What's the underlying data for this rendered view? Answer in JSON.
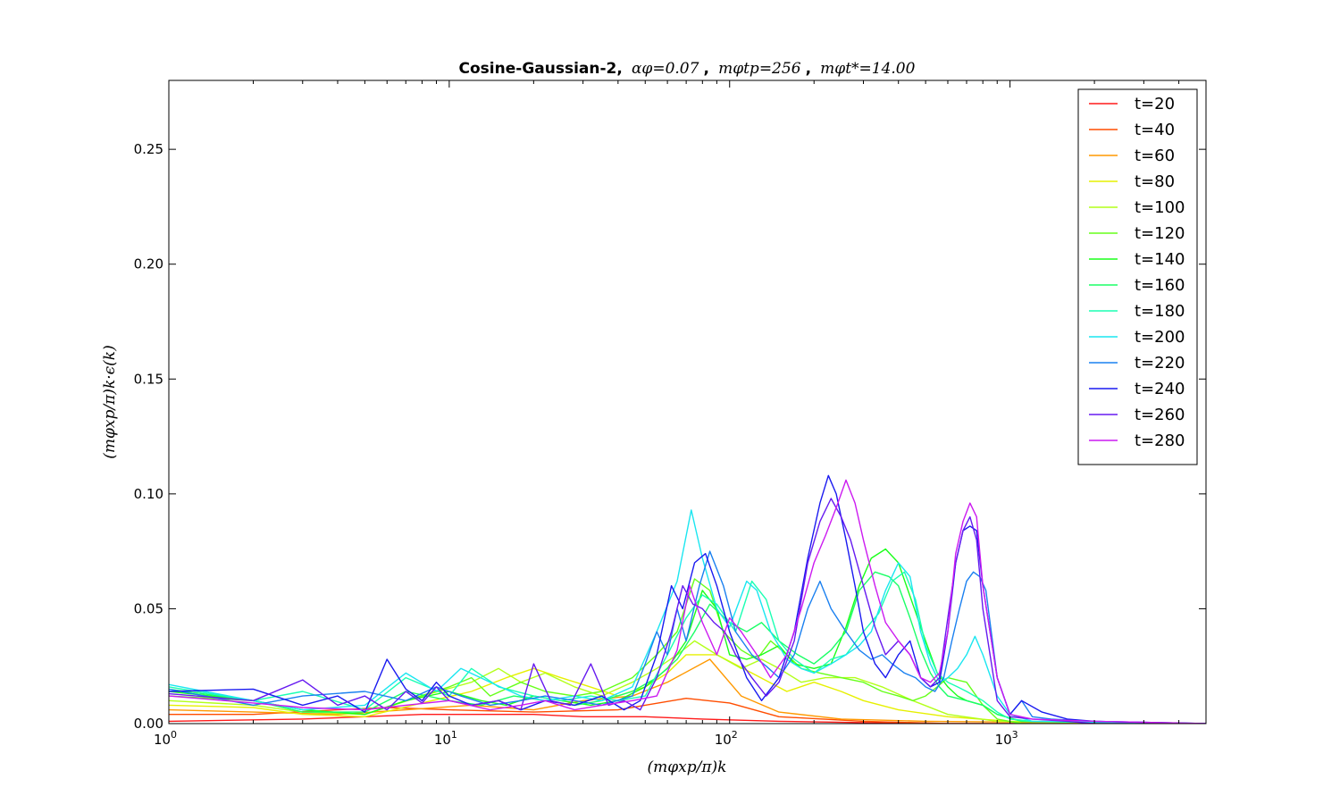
{
  "chart_data": {
    "type": "line",
    "title": {
      "main": "Cosine-Gaussian-2,",
      "part1": "αφ=0.07",
      "sep1": ",",
      "part2": "mφtp=256",
      "sep2": ",",
      "part3": "mφt*=14.00"
    },
    "xlabel": "(mφxp/π)k",
    "ylabel": "(mφxp/π)k·ϵ(k)",
    "x_scale": "log",
    "xlim": [
      1,
      5000
    ],
    "ylim": [
      0,
      0.28
    ],
    "x_ticks": [
      {
        "value": 1,
        "base": "10",
        "exp": "0"
      },
      {
        "value": 10,
        "base": "10",
        "exp": "1"
      },
      {
        "value": 100,
        "base": "10",
        "exp": "2"
      },
      {
        "value": 1000,
        "base": "10",
        "exp": "3"
      }
    ],
    "y_ticks": [
      {
        "value": 0.0,
        "label": "0.00"
      },
      {
        "value": 0.05,
        "label": "0.05"
      },
      {
        "value": 0.1,
        "label": "0.10"
      },
      {
        "value": 0.15,
        "label": "0.15"
      },
      {
        "value": 0.2,
        "label": "0.20"
      },
      {
        "value": 0.25,
        "label": "0.25"
      }
    ],
    "legend_position": "top-right",
    "grid": false,
    "series": [
      {
        "name": "t=20",
        "color": "#ff1a1a",
        "x": [
          1,
          3,
          5,
          8,
          12,
          20,
          30,
          50,
          80,
          150,
          500,
          5000
        ],
        "y": [
          0.001,
          0.002,
          0.003,
          0.004,
          0.004,
          0.004,
          0.003,
          0.003,
          0.002,
          0.001,
          0.0,
          0.0
        ]
      },
      {
        "name": "t=40",
        "color": "#ff4d00",
        "x": [
          1,
          2,
          4,
          6,
          10,
          20,
          40,
          70,
          100,
          150,
          300,
          600,
          5000
        ],
        "y": [
          0.004,
          0.004,
          0.006,
          0.007,
          0.006,
          0.005,
          0.006,
          0.011,
          0.009,
          0.003,
          0.001,
          0.0,
          0.0
        ]
      },
      {
        "name": "t=60",
        "color": "#ff9900",
        "x": [
          1,
          2,
          4,
          7,
          12,
          20,
          30,
          45,
          60,
          85,
          110,
          150,
          250,
          500,
          5000
        ],
        "y": [
          0.006,
          0.005,
          0.004,
          0.006,
          0.008,
          0.006,
          0.01,
          0.012,
          0.018,
          0.028,
          0.012,
          0.005,
          0.002,
          0.001,
          0.0
        ]
      },
      {
        "name": "t=80",
        "color": "#e6f000",
        "x": [
          1,
          2,
          3,
          5,
          8,
          12,
          16,
          20,
          25,
          30,
          40,
          50,
          60,
          70,
          90,
          120,
          160,
          200,
          250,
          300,
          400,
          600,
          1000,
          5000
        ],
        "y": [
          0.008,
          0.007,
          0.004,
          0.003,
          0.009,
          0.014,
          0.02,
          0.024,
          0.02,
          0.017,
          0.012,
          0.016,
          0.022,
          0.03,
          0.03,
          0.022,
          0.014,
          0.018,
          0.014,
          0.01,
          0.006,
          0.003,
          0.001,
          0.0
        ]
      },
      {
        "name": "t=100",
        "color": "#b3ff1a",
        "x": [
          1,
          2,
          3,
          5,
          8,
          12,
          15,
          18,
          22,
          28,
          35,
          45,
          55,
          65,
          75,
          90,
          110,
          130,
          150,
          180,
          220,
          280,
          350,
          450,
          600,
          900,
          5000
        ],
        "y": [
          0.01,
          0.008,
          0.005,
          0.004,
          0.012,
          0.018,
          0.024,
          0.018,
          0.022,
          0.016,
          0.012,
          0.018,
          0.024,
          0.03,
          0.036,
          0.03,
          0.024,
          0.028,
          0.024,
          0.018,
          0.02,
          0.02,
          0.016,
          0.01,
          0.004,
          0.001,
          0.0
        ]
      },
      {
        "name": "t=120",
        "color": "#66ff1a",
        "x": [
          1,
          2,
          3,
          5,
          7,
          10,
          12,
          14,
          18,
          22,
          28,
          35,
          45,
          55,
          65,
          75,
          85,
          95,
          110,
          125,
          140,
          160,
          180,
          210,
          250,
          300,
          350,
          400,
          450,
          500,
          550,
          600,
          700,
          800,
          900,
          1100,
          5000
        ],
        "y": [
          0.012,
          0.01,
          0.006,
          0.004,
          0.01,
          0.016,
          0.02,
          0.012,
          0.018,
          0.014,
          0.012,
          0.014,
          0.02,
          0.03,
          0.04,
          0.063,
          0.058,
          0.04,
          0.032,
          0.028,
          0.036,
          0.03,
          0.024,
          0.022,
          0.02,
          0.018,
          0.014,
          0.012,
          0.01,
          0.012,
          0.016,
          0.02,
          0.018,
          0.008,
          0.002,
          0.0,
          0.0
        ]
      },
      {
        "name": "t=140",
        "color": "#1aff1a",
        "x": [
          1,
          2,
          3,
          5,
          7,
          10,
          13,
          16,
          20,
          25,
          32,
          40,
          50,
          60,
          70,
          80,
          90,
          100,
          115,
          130,
          150,
          170,
          200,
          230,
          260,
          290,
          320,
          360,
          400,
          450,
          500,
          550,
          600,
          650,
          700,
          800,
          900,
          1100,
          5000
        ],
        "y": [
          0.014,
          0.01,
          0.006,
          0.004,
          0.01,
          0.014,
          0.01,
          0.008,
          0.012,
          0.01,
          0.008,
          0.01,
          0.016,
          0.024,
          0.036,
          0.058,
          0.05,
          0.03,
          0.028,
          0.03,
          0.034,
          0.026,
          0.024,
          0.026,
          0.042,
          0.06,
          0.072,
          0.076,
          0.07,
          0.052,
          0.036,
          0.022,
          0.016,
          0.012,
          0.01,
          0.008,
          0.004,
          0.001,
          0.0
        ]
      },
      {
        "name": "t=160",
        "color": "#1aff66",
        "x": [
          1,
          2,
          3,
          5,
          7,
          10,
          13,
          17,
          22,
          28,
          35,
          45,
          55,
          65,
          75,
          85,
          100,
          115,
          130,
          150,
          175,
          200,
          230,
          260,
          290,
          330,
          370,
          400,
          440,
          480,
          520,
          560,
          600,
          700,
          800,
          900,
          1100,
          5000
        ],
        "y": [
          0.015,
          0.01,
          0.005,
          0.005,
          0.014,
          0.01,
          0.008,
          0.012,
          0.01,
          0.008,
          0.01,
          0.014,
          0.02,
          0.028,
          0.04,
          0.052,
          0.044,
          0.04,
          0.044,
          0.036,
          0.03,
          0.026,
          0.032,
          0.04,
          0.058,
          0.066,
          0.064,
          0.06,
          0.046,
          0.032,
          0.022,
          0.016,
          0.012,
          0.01,
          0.008,
          0.004,
          0.001,
          0.0
        ]
      },
      {
        "name": "t=180",
        "color": "#1affb3",
        "x": [
          1,
          2,
          3,
          5,
          7,
          10,
          12,
          15,
          20,
          25,
          32,
          40,
          50,
          60,
          70,
          80,
          90,
          105,
          120,
          135,
          150,
          170,
          200,
          230,
          260,
          300,
          340,
          380,
          420,
          460,
          500,
          550,
          600,
          650,
          700,
          800,
          900,
          1000,
          1200,
          5000
        ],
        "y": [
          0.016,
          0.01,
          0.014,
          0.006,
          0.02,
          0.012,
          0.024,
          0.016,
          0.012,
          0.01,
          0.012,
          0.01,
          0.012,
          0.03,
          0.046,
          0.056,
          0.052,
          0.04,
          0.062,
          0.054,
          0.036,
          0.028,
          0.022,
          0.028,
          0.03,
          0.04,
          0.048,
          0.062,
          0.066,
          0.054,
          0.034,
          0.022,
          0.018,
          0.016,
          0.014,
          0.01,
          0.005,
          0.002,
          0.001,
          0.0
        ]
      },
      {
        "name": "t=200",
        "color": "#1ae6f0",
        "x": [
          1,
          2,
          3,
          5,
          7,
          9,
          11,
          14,
          18,
          22,
          28,
          35,
          45,
          55,
          65,
          73,
          80,
          90,
          100,
          115,
          125,
          140,
          160,
          180,
          200,
          230,
          260,
          290,
          320,
          360,
          400,
          440,
          480,
          520,
          560,
          600,
          650,
          700,
          750,
          800,
          900,
          1000,
          1200,
          5000
        ],
        "y": [
          0.017,
          0.01,
          0.006,
          0.008,
          0.022,
          0.014,
          0.024,
          0.018,
          0.012,
          0.01,
          0.012,
          0.01,
          0.016,
          0.04,
          0.062,
          0.093,
          0.072,
          0.05,
          0.042,
          0.062,
          0.058,
          0.04,
          0.028,
          0.024,
          0.022,
          0.026,
          0.03,
          0.034,
          0.04,
          0.058,
          0.07,
          0.064,
          0.04,
          0.026,
          0.018,
          0.02,
          0.024,
          0.03,
          0.038,
          0.03,
          0.012,
          0.004,
          0.001,
          0.0
        ]
      },
      {
        "name": "t=220",
        "color": "#1a80f0",
        "x": [
          1,
          2,
          3,
          5,
          7,
          9,
          11,
          14,
          18,
          22,
          28,
          35,
          45,
          50,
          55,
          60,
          65,
          70,
          78,
          85,
          95,
          105,
          120,
          135,
          150,
          170,
          190,
          210,
          230,
          260,
          290,
          320,
          350,
          380,
          420,
          460,
          500,
          540,
          580,
          620,
          660,
          700,
          740,
          780,
          820,
          900,
          1000,
          1100,
          1200,
          1400,
          2000,
          5000
        ],
        "y": [
          0.015,
          0.008,
          0.012,
          0.014,
          0.01,
          0.016,
          0.012,
          0.008,
          0.01,
          0.012,
          0.01,
          0.008,
          0.012,
          0.026,
          0.04,
          0.03,
          0.05,
          0.036,
          0.06,
          0.075,
          0.06,
          0.04,
          0.03,
          0.025,
          0.02,
          0.03,
          0.05,
          0.062,
          0.05,
          0.04,
          0.032,
          0.028,
          0.03,
          0.026,
          0.022,
          0.02,
          0.016,
          0.014,
          0.02,
          0.036,
          0.05,
          0.062,
          0.066,
          0.064,
          0.058,
          0.02,
          0.004,
          0.01,
          0.003,
          0.002,
          0.001,
          0.0
        ]
      },
      {
        "name": "t=240",
        "color": "#1a1af0",
        "x": [
          1,
          2,
          3,
          4,
          5,
          6,
          7,
          8,
          9,
          10,
          12,
          15,
          18,
          22,
          28,
          35,
          42,
          48,
          55,
          62,
          68,
          75,
          82,
          90,
          100,
          115,
          130,
          150,
          170,
          190,
          210,
          225,
          240,
          260,
          280,
          300,
          330,
          360,
          400,
          440,
          480,
          520,
          560,
          600,
          640,
          680,
          720,
          760,
          800,
          900,
          1000,
          1100,
          1300,
          1600,
          2000,
          5000
        ],
        "y": [
          0.014,
          0.015,
          0.008,
          0.012,
          0.005,
          0.028,
          0.015,
          0.01,
          0.018,
          0.012,
          0.008,
          0.01,
          0.006,
          0.01,
          0.008,
          0.012,
          0.006,
          0.01,
          0.03,
          0.06,
          0.05,
          0.07,
          0.074,
          0.06,
          0.04,
          0.02,
          0.01,
          0.02,
          0.04,
          0.072,
          0.096,
          0.108,
          0.1,
          0.08,
          0.06,
          0.04,
          0.026,
          0.02,
          0.03,
          0.036,
          0.02,
          0.016,
          0.018,
          0.04,
          0.07,
          0.084,
          0.086,
          0.084,
          0.06,
          0.02,
          0.004,
          0.01,
          0.005,
          0.002,
          0.001,
          0.0
        ]
      },
      {
        "name": "t=260",
        "color": "#661af0",
        "x": [
          1,
          2,
          3,
          4,
          5,
          6,
          7,
          8,
          9,
          10,
          12,
          15,
          18,
          20,
          23,
          27,
          32,
          37,
          42,
          48,
          55,
          62,
          68,
          74,
          80,
          88,
          96,
          105,
          120,
          135,
          150,
          170,
          190,
          210,
          230,
          250,
          270,
          300,
          330,
          360,
          400,
          440,
          480,
          520,
          560,
          600,
          640,
          680,
          720,
          760,
          800,
          900,
          1000,
          1200,
          1600,
          2000,
          5000
        ],
        "y": [
          0.013,
          0.01,
          0.019,
          0.008,
          0.012,
          0.006,
          0.014,
          0.009,
          0.016,
          0.01,
          0.008,
          0.01,
          0.006,
          0.026,
          0.01,
          0.008,
          0.026,
          0.008,
          0.01,
          0.006,
          0.02,
          0.04,
          0.06,
          0.052,
          0.05,
          0.044,
          0.04,
          0.03,
          0.02,
          0.012,
          0.018,
          0.036,
          0.07,
          0.088,
          0.098,
          0.09,
          0.08,
          0.06,
          0.042,
          0.03,
          0.036,
          0.03,
          0.02,
          0.016,
          0.02,
          0.046,
          0.07,
          0.084,
          0.09,
          0.08,
          0.05,
          0.01,
          0.003,
          0.002,
          0.001,
          0.0,
          0.0
        ]
      },
      {
        "name": "t=280",
        "color": "#cc1af0",
        "x": [
          1,
          2,
          3,
          5,
          7,
          10,
          14,
          18,
          22,
          28,
          35,
          45,
          55,
          65,
          72,
          80,
          90,
          100,
          110,
          125,
          140,
          160,
          180,
          200,
          220,
          240,
          260,
          280,
          300,
          330,
          360,
          400,
          440,
          480,
          520,
          560,
          600,
          640,
          680,
          720,
          760,
          800,
          900,
          1000,
          1200,
          2000,
          5000
        ],
        "y": [
          0.012,
          0.009,
          0.007,
          0.006,
          0.008,
          0.01,
          0.006,
          0.008,
          0.01,
          0.006,
          0.008,
          0.01,
          0.012,
          0.032,
          0.06,
          0.044,
          0.03,
          0.046,
          0.04,
          0.03,
          0.02,
          0.03,
          0.05,
          0.07,
          0.082,
          0.094,
          0.106,
          0.096,
          0.08,
          0.06,
          0.044,
          0.036,
          0.03,
          0.02,
          0.018,
          0.022,
          0.04,
          0.074,
          0.088,
          0.096,
          0.09,
          0.06,
          0.02,
          0.004,
          0.002,
          0.001,
          0.0
        ]
      }
    ]
  }
}
